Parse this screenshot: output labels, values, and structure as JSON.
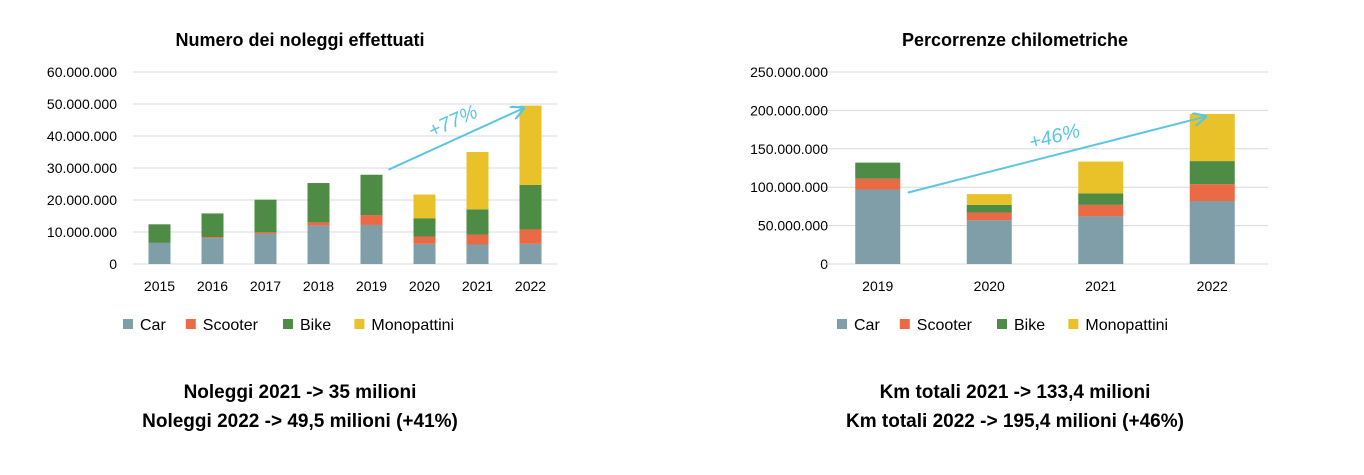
{
  "chart_data": [
    {
      "type": "bar",
      "stacked": true,
      "title": "Numero dei noleggi effettuati",
      "categories": [
        "2015",
        "2016",
        "2017",
        "2018",
        "2019",
        "2020",
        "2021",
        "2022"
      ],
      "yticks": [
        "60.000.000",
        "50.000.000",
        "40.000.000",
        "30.000.000",
        "20.000.000",
        "10.000.000",
        "0"
      ],
      "ylim": [
        0,
        60000000
      ],
      "grid": true,
      "legend_position": "bottom",
      "series": [
        {
          "name": "Car",
          "color": "#7f9ea8",
          "values": [
            6600000,
            8100000,
            9400000,
            12000000,
            12200000,
            6300000,
            6100000,
            6300000
          ]
        },
        {
          "name": "Scooter",
          "color": "#ea6a46",
          "values": [
            0,
            300000,
            500000,
            1000000,
            3100000,
            2300000,
            3100000,
            4500000
          ]
        },
        {
          "name": "Bike",
          "color": "#4e8c45",
          "values": [
            5800000,
            7400000,
            10200000,
            12300000,
            12600000,
            5700000,
            7900000,
            13900000
          ]
        },
        {
          "name": "Monopattini",
          "color": "#e9c22a",
          "values": [
            0,
            0,
            0,
            0,
            0,
            7400000,
            17900000,
            24800000
          ]
        }
      ],
      "annotation": {
        "text": "+77%",
        "color": "#5bc6e2"
      }
    },
    {
      "type": "bar",
      "stacked": true,
      "title": "Percorrenze chilometriche",
      "categories": [
        "2019",
        "2020",
        "2021",
        "2022"
      ],
      "yticks": [
        "250.000.000",
        "200.000.000",
        "150.000.000",
        "100.000.000",
        "50.000.000",
        "0"
      ],
      "ylim": [
        0,
        250000000
      ],
      "grid": true,
      "legend_position": "bottom",
      "series": [
        {
          "name": "Car",
          "color": "#7f9ea8",
          "values": [
            97000000,
            57000000,
            62000000,
            82000000
          ]
        },
        {
          "name": "Scooter",
          "color": "#ea6a46",
          "values": [
            14000000,
            10000000,
            15000000,
            22000000
          ]
        },
        {
          "name": "Bike",
          "color": "#4e8c45",
          "values": [
            21000000,
            10000000,
            15000000,
            30000000
          ]
        },
        {
          "name": "Monopattini",
          "color": "#e9c22a",
          "values": [
            0,
            14000000,
            41400000,
            61400000
          ]
        }
      ],
      "annotation": {
        "text": "+46%",
        "color": "#5bc6e2"
      }
    }
  ],
  "captions": {
    "left": [
      "Noleggi 2021 -> 35 milioni",
      "Noleggi 2022 -> 49,5 milioni (+41%)"
    ],
    "right": [
      "Km totali 2021 -> 133,4 milioni",
      "Km totali 2022 -> 195,4 milioni (+46%)"
    ]
  }
}
